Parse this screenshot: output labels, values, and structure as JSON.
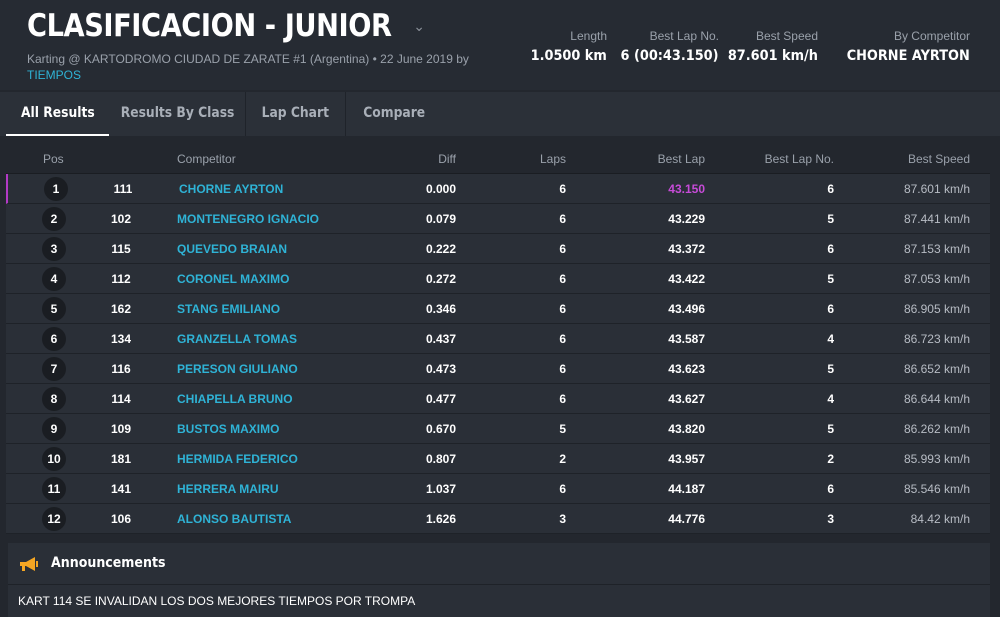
{
  "header": {
    "title": "CLASIFICACION - JUNIOR",
    "subtitle": "Karting @ KARTODROMO CIUDAD DE ZARATE #1 (Argentina) • 22 June 2019 by",
    "subtitle_link": "TIEMPOS",
    "stats": [
      {
        "label": "Length",
        "value": "1.0500 km"
      },
      {
        "label": "Best Lap No.",
        "value": "6 (00:43.150)"
      },
      {
        "label": "Best Speed",
        "value": "87.601 km/h"
      },
      {
        "label": "By Competitor",
        "value": "CHORNE AYRTON"
      }
    ]
  },
  "tabs": [
    {
      "label": "All Results",
      "active": true
    },
    {
      "label": "Results By Class",
      "active": false
    },
    {
      "label": "Lap Chart",
      "active": false
    },
    {
      "label": "Compare",
      "active": false
    }
  ],
  "table": {
    "columns": {
      "pos": "Pos",
      "competitor": "Competitor",
      "diff": "Diff",
      "laps": "Laps",
      "best_lap": "Best Lap",
      "best_lap_no": "Best Lap No.",
      "best_speed": "Best Speed"
    },
    "rows": [
      {
        "pos": "1",
        "num": "111",
        "name": "CHORNE AYRTON",
        "diff": "0.000",
        "laps": "6",
        "best": "43.150",
        "bestno": "6",
        "speed": "87.601 km/h"
      },
      {
        "pos": "2",
        "num": "102",
        "name": "MONTENEGRO IGNACIO",
        "diff": "0.079",
        "laps": "6",
        "best": "43.229",
        "bestno": "5",
        "speed": "87.441 km/h"
      },
      {
        "pos": "3",
        "num": "115",
        "name": "QUEVEDO BRAIAN",
        "diff": "0.222",
        "laps": "6",
        "best": "43.372",
        "bestno": "6",
        "speed": "87.153 km/h"
      },
      {
        "pos": "4",
        "num": "112",
        "name": "CORONEL MAXIMO",
        "diff": "0.272",
        "laps": "6",
        "best": "43.422",
        "bestno": "5",
        "speed": "87.053 km/h"
      },
      {
        "pos": "5",
        "num": "162",
        "name": "STANG EMILIANO",
        "diff": "0.346",
        "laps": "6",
        "best": "43.496",
        "bestno": "6",
        "speed": "86.905 km/h"
      },
      {
        "pos": "6",
        "num": "134",
        "name": "GRANZELLA TOMAS",
        "diff": "0.437",
        "laps": "6",
        "best": "43.587",
        "bestno": "4",
        "speed": "86.723 km/h"
      },
      {
        "pos": "7",
        "num": "116",
        "name": "PERESON GIULIANO",
        "diff": "0.473",
        "laps": "6",
        "best": "43.623",
        "bestno": "5",
        "speed": "86.652 km/h"
      },
      {
        "pos": "8",
        "num": "114",
        "name": "CHIAPELLA BRUNO",
        "diff": "0.477",
        "laps": "6",
        "best": "43.627",
        "bestno": "4",
        "speed": "86.644 km/h"
      },
      {
        "pos": "9",
        "num": "109",
        "name": "BUSTOS MAXIMO",
        "diff": "0.670",
        "laps": "5",
        "best": "43.820",
        "bestno": "5",
        "speed": "86.262 km/h"
      },
      {
        "pos": "10",
        "num": "181",
        "name": "HERMIDA FEDERICO",
        "diff": "0.807",
        "laps": "2",
        "best": "43.957",
        "bestno": "2",
        "speed": "85.993 km/h"
      },
      {
        "pos": "11",
        "num": "141",
        "name": "HERRERA MAIRU",
        "diff": "1.037",
        "laps": "6",
        "best": "44.187",
        "bestno": "6",
        "speed": "85.546 km/h"
      },
      {
        "pos": "12",
        "num": "106",
        "name": "ALONSO BAUTISTA",
        "diff": "1.626",
        "laps": "3",
        "best": "44.776",
        "bestno": "3",
        "speed": "84.42 km/h"
      }
    ]
  },
  "announcements": {
    "title": "Announcements",
    "text": "KART 114 SE INVALIDAN LOS DOS MEJORES TIEMPOS POR TROMPA"
  },
  "colors": {
    "link": "#2fb3d6",
    "best_overall": "#c74bd8",
    "leader_marker": "#b23ac6",
    "announcement_icon": "#f5a623"
  }
}
